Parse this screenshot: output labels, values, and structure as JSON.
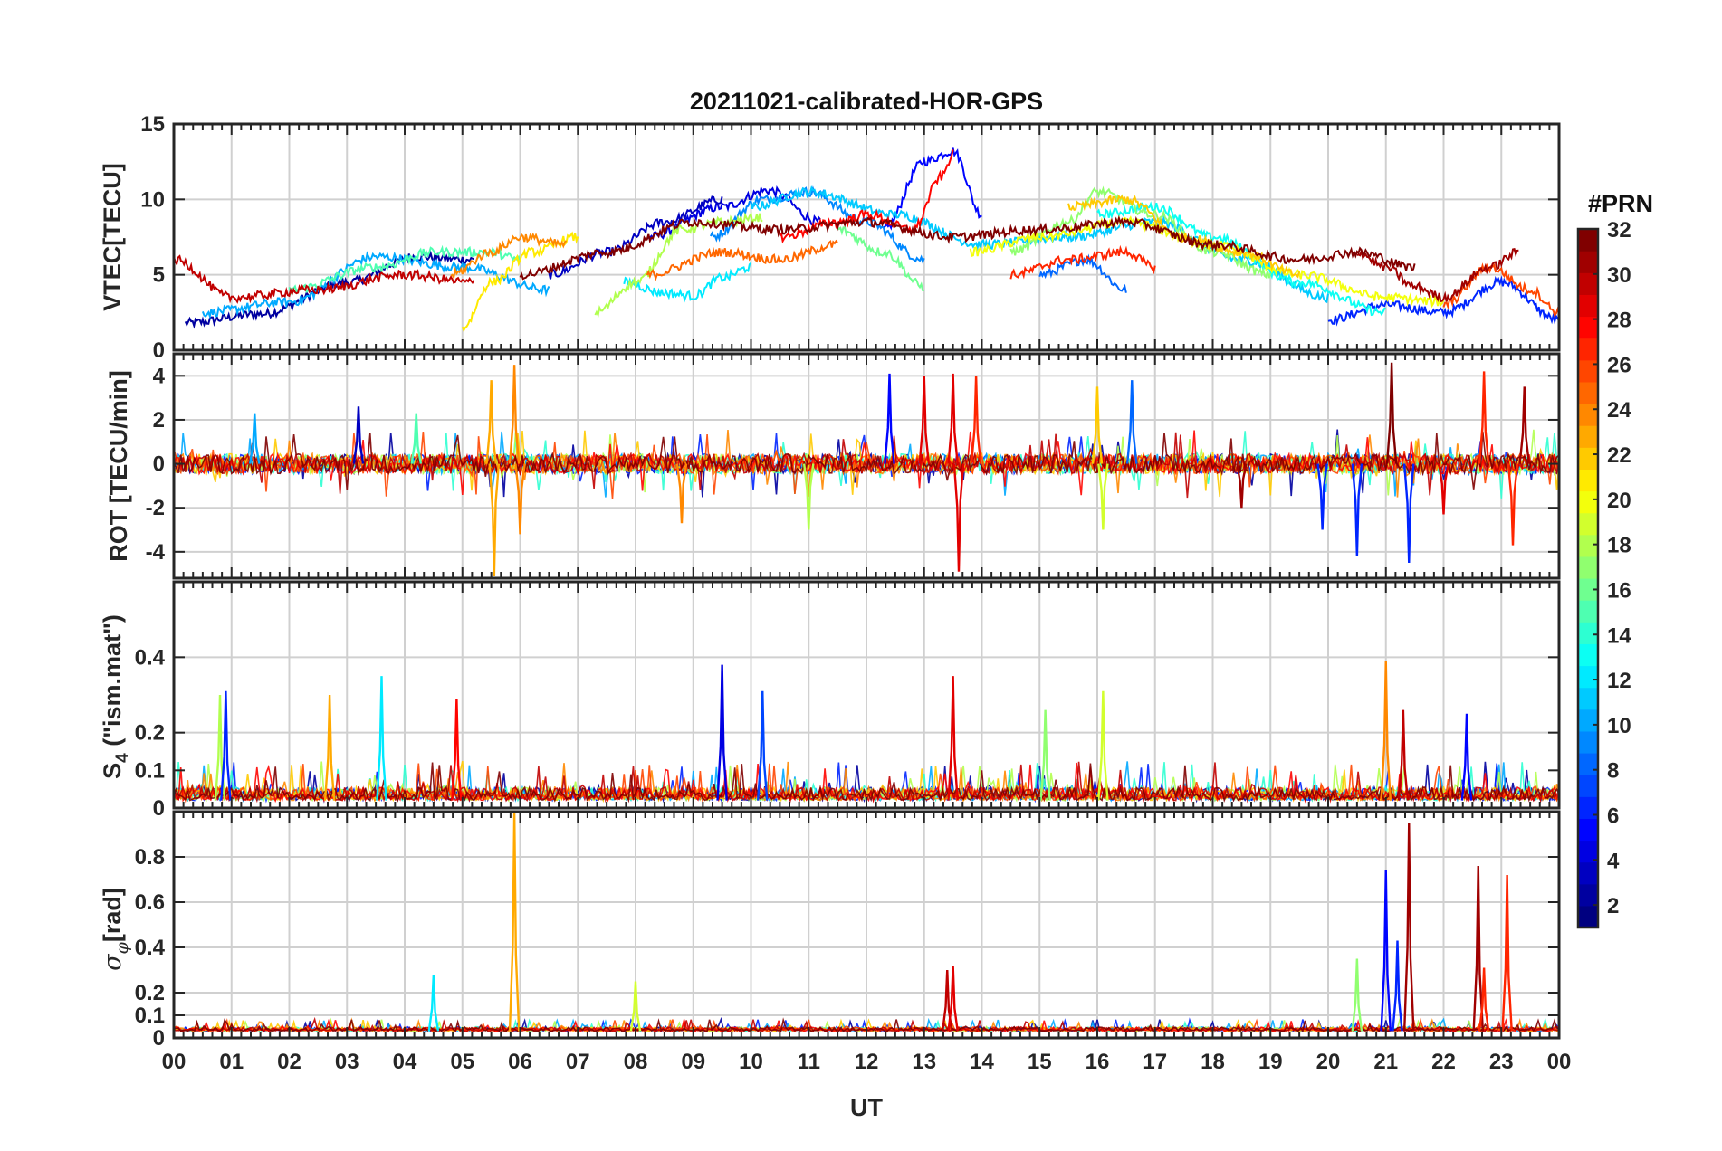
{
  "chart_data": {
    "type": "line",
    "title": "20211021-calibrated-HOR-GPS",
    "xlabel": "UT",
    "x_tick_labels": [
      "00",
      "01",
      "02",
      "03",
      "04",
      "05",
      "06",
      "07",
      "08",
      "09",
      "10",
      "11",
      "12",
      "13",
      "14",
      "15",
      "16",
      "17",
      "18",
      "19",
      "20",
      "21",
      "22",
      "23",
      "00"
    ],
    "xlim_hours": [
      0,
      24
    ],
    "grid": true,
    "colorbar": {
      "title": "#PRN",
      "range": [
        1,
        32
      ],
      "colormap": "jet",
      "tick_labels": [
        "2",
        "4",
        "6",
        "8",
        "10",
        "12",
        "14",
        "16",
        "18",
        "20",
        "22",
        "24",
        "26",
        "28",
        "30",
        "32"
      ]
    },
    "panels": [
      {
        "id": "vtec",
        "ylabel": "VTEC[TECU]",
        "ylim": [
          0,
          15
        ],
        "y_tick_labels": [
          "0",
          "5",
          "10",
          "15"
        ],
        "style": "smooth",
        "series": [
          {
            "prn": 2,
            "t": [
              0.2,
              1.5,
              3.0,
              4.2,
              5.2
            ],
            "v": [
              1.8,
              2.4,
              4.5,
              6.2,
              6.0
            ]
          },
          {
            "prn": 4,
            "t": [
              8.2,
              9.5,
              10.3,
              11.2
            ],
            "v": [
              7.5,
              9.5,
              10.6,
              8.5
            ]
          },
          {
            "prn": 5,
            "t": [
              12.3,
              13.0,
              13.5,
              14.0
            ],
            "v": [
              8.0,
              12.5,
              13.2,
              9.0
            ]
          },
          {
            "prn": 6,
            "t": [
              20.0,
              21.0,
              22.0,
              23.0,
              24.0
            ],
            "v": [
              2.0,
              3.0,
              2.5,
              4.5,
              2.0
            ]
          },
          {
            "prn": 3,
            "t": [
              6.5,
              7.5,
              8.5,
              9.5
            ],
            "v": [
              5.0,
              6.5,
              8.5,
              10.0
            ]
          },
          {
            "prn": 8,
            "t": [
              15.0,
              15.8,
              16.5
            ],
            "v": [
              5.0,
              6.0,
              4.0
            ]
          },
          {
            "prn": 9,
            "t": [
              9.3,
              10.2,
              11.0,
              12.0,
              13.0
            ],
            "v": [
              7.5,
              10.0,
              10.5,
              8.5,
              6.0
            ]
          },
          {
            "prn": 10,
            "t": [
              0.5,
              2.0,
              3.5,
              5.0,
              6.5
            ],
            "v": [
              2.5,
              3.2,
              6.2,
              5.5,
              4.0
            ]
          },
          {
            "prn": 11,
            "t": [
              10.0,
              11.0,
              12.5,
              14.0,
              15.5,
              17.0,
              18.5,
              20.0
            ],
            "v": [
              9.5,
              10.5,
              9.0,
              7.0,
              7.5,
              8.5,
              6.0,
              3.5
            ]
          },
          {
            "prn": 12,
            "t": [
              7.8,
              8.5,
              9.0,
              9.5,
              10.0
            ],
            "v": [
              4.5,
              3.8,
              3.6,
              4.8,
              5.5
            ]
          },
          {
            "prn": 13,
            "t": [
              16.0,
              17.0,
              18.0,
              19.5,
              21.0
            ],
            "v": [
              9.0,
              9.5,
              7.5,
              4.5,
              2.5
            ]
          },
          {
            "prn": 15,
            "t": [
              2.0,
              3.5,
              4.5,
              5.5,
              6.0
            ],
            "v": [
              4.0,
              5.5,
              6.5,
              6.5,
              6.0
            ]
          },
          {
            "prn": 16,
            "t": [
              11.5,
              12.3,
              13.0
            ],
            "v": [
              8.0,
              6.5,
              4.2
            ]
          },
          {
            "prn": 17,
            "t": [
              14.5,
              15.5,
              16.0,
              17.0,
              18.0,
              19.0
            ],
            "v": [
              6.5,
              8.5,
              10.5,
              9.0,
              6.5,
              5.0
            ]
          },
          {
            "prn": 18,
            "t": [
              7.3,
              8.0,
              8.8,
              9.5,
              10.2
            ],
            "v": [
              2.5,
              4.5,
              8.0,
              8.5,
              8.8
            ]
          },
          {
            "prn": 20,
            "t": [
              13.8,
              15.0,
              16.5,
              18.0,
              19.5,
              21.0,
              22.0
            ],
            "v": [
              6.5,
              7.5,
              8.5,
              7.0,
              5.0,
              3.5,
              3.2
            ]
          },
          {
            "prn": 21,
            "t": [
              5.0,
              5.5,
              6.2,
              7.0
            ],
            "v": [
              1.5,
              4.5,
              6.5,
              7.5
            ]
          },
          {
            "prn": 22,
            "t": [
              15.5,
              16.5,
              17.5,
              18.5,
              19.5
            ],
            "v": [
              9.5,
              10.0,
              7.5,
              6.5,
              5.0
            ]
          },
          {
            "prn": 24,
            "t": [
              4.8,
              5.5,
              6.0,
              6.8
            ],
            "v": [
              5.0,
              6.5,
              7.5,
              7.0
            ]
          },
          {
            "prn": 25,
            "t": [
              8.2,
              9.5,
              10.5,
              11.5
            ],
            "v": [
              5.0,
              6.5,
              6.0,
              7.0
            ]
          },
          {
            "prn": 26,
            "t": [
              22.0,
              22.8,
              23.5,
              24.0
            ],
            "v": [
              3.0,
              5.5,
              4.0,
              2.5
            ]
          },
          {
            "prn": 27,
            "t": [
              14.5,
              15.5,
              16.5,
              17.0
            ],
            "v": [
              5.0,
              6.0,
              6.5,
              5.5
            ]
          },
          {
            "prn": 28,
            "t": [
              10.5,
              11.5,
              12.0,
              12.8,
              13.3,
              13.5
            ],
            "v": [
              7.5,
              8.5,
              9.0,
              8.0,
              11.5,
              13.0
            ]
          },
          {
            "prn": 30,
            "t": [
              0.0,
              1.0,
              2.5,
              4.0,
              5.2
            ],
            "v": [
              6.0,
              3.5,
              4.0,
              5.0,
              4.5
            ]
          },
          {
            "prn": 31,
            "t": [
              20.5,
              21.0,
              21.5,
              22.0,
              22.8,
              23.3
            ],
            "v": [
              6.5,
              5.5,
              4.2,
              3.5,
              5.5,
              6.5
            ]
          },
          {
            "prn": 32,
            "t": [
              6.0,
              7.5,
              9.0,
              10.5,
              12.0,
              13.5,
              15.0,
              16.5,
              18.0,
              19.5,
              20.5,
              21.5
            ],
            "v": [
              5.0,
              6.5,
              8.5,
              8.0,
              8.5,
              7.5,
              8.0,
              8.5,
              7.0,
              6.0,
              6.5,
              5.5
            ]
          }
        ]
      },
      {
        "id": "rot",
        "ylabel": "ROT [TECU/min]",
        "ylim": [
          -5.2,
          5.0
        ],
        "y_tick_labels": [
          "-4",
          "-2",
          "0",
          "2",
          "4"
        ],
        "style": "noise",
        "baseline": 0,
        "spikes": [
          {
            "t": 1.4,
            "v": 2.3,
            "prn": 10
          },
          {
            "t": 3.2,
            "v": 2.6,
            "prn": 3
          },
          {
            "t": 4.2,
            "v": 2.3,
            "prn": 15
          },
          {
            "t": 5.5,
            "v": 3.8,
            "prn": 23
          },
          {
            "t": 5.55,
            "v": -5.1,
            "prn": 23
          },
          {
            "t": 5.9,
            "v": 4.5,
            "prn": 24
          },
          {
            "t": 6.0,
            "v": -3.2,
            "prn": 24
          },
          {
            "t": 8.8,
            "v": -2.7,
            "prn": 24
          },
          {
            "t": 11.0,
            "v": -3.0,
            "prn": 18
          },
          {
            "t": 12.4,
            "v": 4.1,
            "prn": 5
          },
          {
            "t": 13.0,
            "v": 4.0,
            "prn": 29
          },
          {
            "t": 13.5,
            "v": 4.1,
            "prn": 29
          },
          {
            "t": 13.6,
            "v": -4.9,
            "prn": 29
          },
          {
            "t": 13.9,
            "v": 4.0,
            "prn": 27
          },
          {
            "t": 16.0,
            "v": 3.5,
            "prn": 22
          },
          {
            "t": 16.1,
            "v": -3.0,
            "prn": 19
          },
          {
            "t": 16.6,
            "v": 3.8,
            "prn": 8
          },
          {
            "t": 18.5,
            "v": -2.0,
            "prn": 31
          },
          {
            "t": 19.9,
            "v": -3.0,
            "prn": 6
          },
          {
            "t": 20.5,
            "v": -4.2,
            "prn": 6
          },
          {
            "t": 21.1,
            "v": 4.6,
            "prn": 32
          },
          {
            "t": 21.4,
            "v": -4.5,
            "prn": 6
          },
          {
            "t": 22.0,
            "v": -2.3,
            "prn": 29
          },
          {
            "t": 22.7,
            "v": 4.2,
            "prn": 27
          },
          {
            "t": 23.2,
            "v": -3.7,
            "prn": 27
          },
          {
            "t": 23.4,
            "v": 3.5,
            "prn": 31
          }
        ]
      },
      {
        "id": "s4",
        "ylabel": "S4 (\"ism.mat\")",
        "ylim": [
          0,
          0.6
        ],
        "y_tick_labels": [
          "0",
          "0.1",
          "0.2",
          "0.4"
        ],
        "style": "noise",
        "baseline": 0.02,
        "spikes": [
          {
            "t": 0.8,
            "v": 0.3,
            "prn": 18
          },
          {
            "t": 0.9,
            "v": 0.31,
            "prn": 6
          },
          {
            "t": 2.7,
            "v": 0.3,
            "prn": 23
          },
          {
            "t": 3.6,
            "v": 0.35,
            "prn": 12
          },
          {
            "t": 4.9,
            "v": 0.29,
            "prn": 28
          },
          {
            "t": 9.5,
            "v": 0.38,
            "prn": 4
          },
          {
            "t": 10.2,
            "v": 0.31,
            "prn": 7
          },
          {
            "t": 13.5,
            "v": 0.35,
            "prn": 29
          },
          {
            "t": 15.1,
            "v": 0.26,
            "prn": 17
          },
          {
            "t": 16.1,
            "v": 0.31,
            "prn": 19
          },
          {
            "t": 21.0,
            "v": 0.39,
            "prn": 24
          },
          {
            "t": 21.3,
            "v": 0.26,
            "prn": 30
          },
          {
            "t": 22.4,
            "v": 0.25,
            "prn": 5
          }
        ]
      },
      {
        "id": "sigma_phi",
        "ylabel": "σφ[rad]",
        "ylim": [
          0,
          1.0
        ],
        "y_tick_labels": [
          "0",
          "0.1",
          "0.2",
          "0.4",
          "0.6",
          "0.8"
        ],
        "style": "noise",
        "baseline": 0.03,
        "spikes": [
          {
            "t": 4.5,
            "v": 0.28,
            "prn": 12
          },
          {
            "t": 5.9,
            "v": 1.0,
            "prn": 23
          },
          {
            "t": 8.0,
            "v": 0.25,
            "prn": 19
          },
          {
            "t": 13.4,
            "v": 0.3,
            "prn": 30
          },
          {
            "t": 13.5,
            "v": 0.32,
            "prn": 29
          },
          {
            "t": 20.5,
            "v": 0.35,
            "prn": 17
          },
          {
            "t": 21.0,
            "v": 0.74,
            "prn": 5
          },
          {
            "t": 21.2,
            "v": 0.43,
            "prn": 6
          },
          {
            "t": 21.4,
            "v": 0.95,
            "prn": 31
          },
          {
            "t": 22.6,
            "v": 0.76,
            "prn": 31
          },
          {
            "t": 22.7,
            "v": 0.31,
            "prn": 27
          },
          {
            "t": 23.1,
            "v": 0.72,
            "prn": 27
          }
        ]
      }
    ]
  }
}
